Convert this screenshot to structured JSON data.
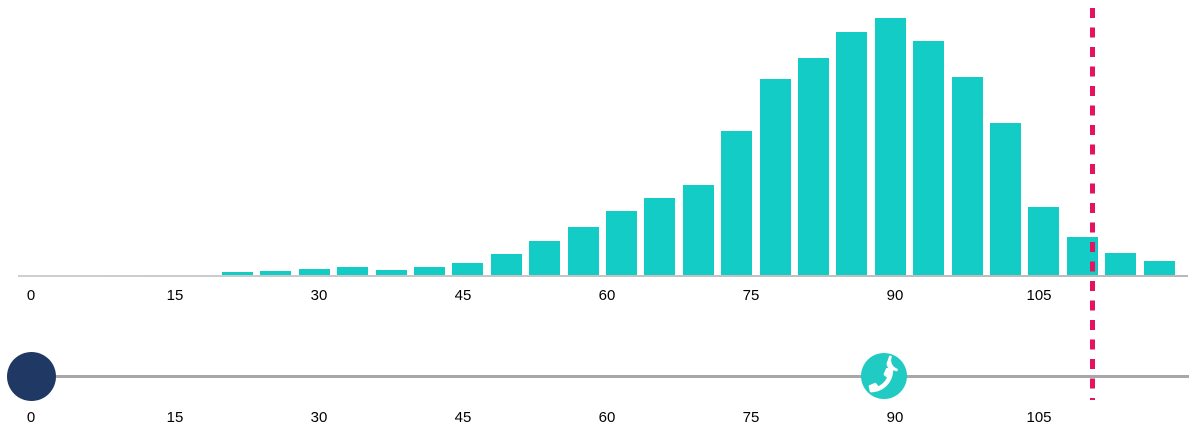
{
  "colors": {
    "teal_bar": "#13CCC6",
    "icon_teal": "#1FCBC3",
    "navy_handle": "#1F3864",
    "pink_threshold": "#E4125F",
    "axis_gray": "#B9B9B9",
    "track_gray": "#A8A8A8",
    "label_black": "#000000"
  },
  "chart_data": {
    "type": "bar",
    "title": "",
    "xlabel": "",
    "ylabel": "",
    "y_axis_visible": false,
    "values_unit": "relative frequency (% of tallest bar)",
    "bin_width": 4,
    "x": [
      21.5,
      25.5,
      29.5,
      33.5,
      37.5,
      41.5,
      45.5,
      49.5,
      53.5,
      57.5,
      61.5,
      65.5,
      69.5,
      73.5,
      77.5,
      81.5,
      85.5,
      89.5,
      93.5,
      97.5,
      101.5,
      105.5,
      109.5,
      113.5,
      117.5
    ],
    "values": [
      1.2,
      1.6,
      2.3,
      3.1,
      1.9,
      3.1,
      4.7,
      8.2,
      13.2,
      18.7,
      24.9,
      30.0,
      35.0,
      56.0,
      76.3,
      84.4,
      94.6,
      100,
      91.1,
      77.0,
      59.1,
      26.5,
      14.8,
      8.6,
      5.4
    ],
    "x_ticks": [
      "0",
      "15",
      "30",
      "45",
      "60",
      "75",
      "90",
      "105"
    ],
    "x_tick_values": [
      0,
      15,
      30,
      45,
      60,
      75,
      90,
      105
    ],
    "xlim": [
      -1.4,
      120.5
    ],
    "threshold_x": 110.6,
    "legend": null,
    "grid": false
  },
  "slider": {
    "min": 0,
    "max": 120.5,
    "ticks": [
      "0",
      "15",
      "30",
      "45",
      "60",
      "75",
      "90",
      "105"
    ],
    "tick_values": [
      0,
      15,
      30,
      45,
      60,
      75,
      90,
      105
    ],
    "handle_value": 0,
    "phone_marker_value": 88.9,
    "phone_icon": "phone-volume-icon"
  }
}
